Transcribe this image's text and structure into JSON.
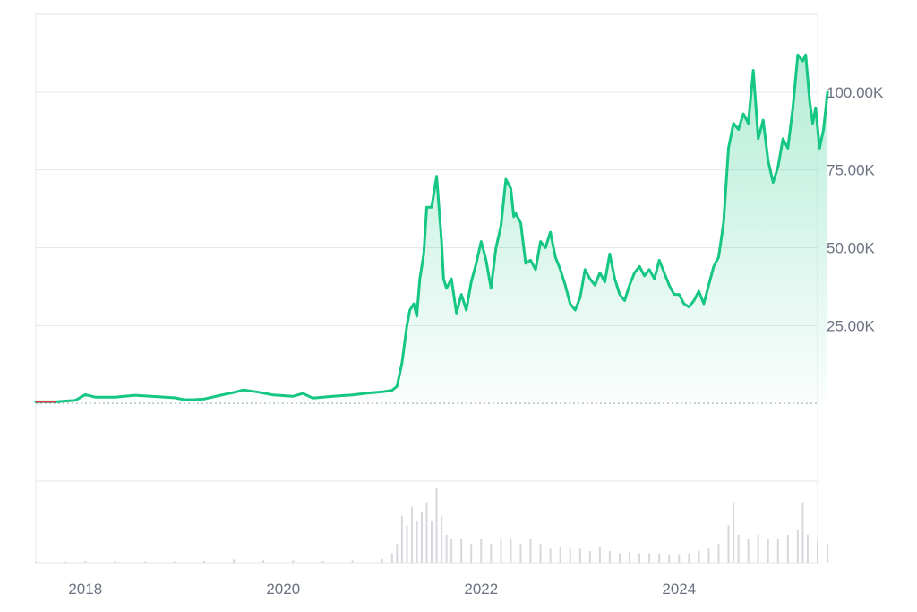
{
  "chart_data": {
    "type": "area",
    "title": "",
    "xlabel": "",
    "ylabel": "",
    "y_ticks": [
      25000,
      50000,
      75000,
      100000
    ],
    "y_tick_labels": [
      "25.00K",
      "50.00K",
      "75.00K",
      "100.00K"
    ],
    "x_ticks": [
      2018,
      2020,
      2022,
      2024
    ],
    "x_tick_labels": [
      "2018",
      "2020",
      "2022",
      "2024"
    ],
    "ylim": [
      -25000,
      125000
    ],
    "xlim": [
      2017.5,
      2025.4
    ],
    "grid": true,
    "colors": {
      "line": "#16c784",
      "fill": "#16c784",
      "start_segment": "#ea3943",
      "grid": "#e5e7eb",
      "volume": "#d5d8dd",
      "zero_line": "#9ca3af"
    },
    "series": [
      {
        "values": [
          [
            2017.5,
            500
          ],
          [
            2017.7,
            500
          ],
          [
            2017.9,
            1000
          ],
          [
            2018.0,
            2800
          ],
          [
            2018.1,
            2000
          ],
          [
            2018.3,
            2000
          ],
          [
            2018.5,
            2600
          ],
          [
            2018.7,
            2200
          ],
          [
            2018.9,
            1800
          ],
          [
            2019.0,
            1200
          ],
          [
            2019.1,
            1200
          ],
          [
            2019.2,
            1400
          ],
          [
            2019.35,
            2500
          ],
          [
            2019.5,
            3500
          ],
          [
            2019.6,
            4300
          ],
          [
            2019.75,
            3600
          ],
          [
            2019.9,
            2700
          ],
          [
            2020.1,
            2300
          ],
          [
            2020.2,
            3200
          ],
          [
            2020.3,
            1700
          ],
          [
            2020.5,
            2300
          ],
          [
            2020.7,
            2700
          ],
          [
            2020.85,
            3300
          ],
          [
            2021.0,
            3700
          ],
          [
            2021.1,
            4200
          ],
          [
            2021.15,
            5500
          ],
          [
            2021.2,
            13000
          ],
          [
            2021.25,
            25000
          ],
          [
            2021.28,
            30000
          ],
          [
            2021.32,
            32000
          ],
          [
            2021.35,
            28000
          ],
          [
            2021.38,
            40000
          ],
          [
            2021.42,
            48000
          ],
          [
            2021.45,
            63000
          ],
          [
            2021.5,
            63000
          ],
          [
            2021.55,
            73000
          ],
          [
            2021.6,
            52000
          ],
          [
            2021.62,
            40000
          ],
          [
            2021.65,
            37000
          ],
          [
            2021.7,
            40000
          ],
          [
            2021.75,
            29000
          ],
          [
            2021.8,
            35000
          ],
          [
            2021.85,
            30000
          ],
          [
            2021.9,
            39000
          ],
          [
            2021.95,
            45000
          ],
          [
            2022.0,
            52000
          ],
          [
            2022.05,
            46000
          ],
          [
            2022.1,
            37000
          ],
          [
            2022.15,
            50000
          ],
          [
            2022.2,
            57000
          ],
          [
            2022.25,
            72000
          ],
          [
            2022.3,
            69000
          ],
          [
            2022.33,
            60000
          ],
          [
            2022.35,
            61000
          ],
          [
            2022.4,
            58000
          ],
          [
            2022.45,
            45000
          ],
          [
            2022.5,
            46000
          ],
          [
            2022.55,
            43000
          ],
          [
            2022.6,
            52000
          ],
          [
            2022.65,
            50000
          ],
          [
            2022.7,
            55000
          ],
          [
            2022.75,
            47000
          ],
          [
            2022.8,
            43000
          ],
          [
            2022.85,
            38000
          ],
          [
            2022.9,
            32000
          ],
          [
            2022.95,
            30000
          ],
          [
            2023.0,
            34000
          ],
          [
            2023.05,
            43000
          ],
          [
            2023.1,
            40000
          ],
          [
            2023.15,
            38000
          ],
          [
            2023.2,
            42000
          ],
          [
            2023.25,
            39000
          ],
          [
            2023.3,
            48000
          ],
          [
            2023.35,
            40000
          ],
          [
            2023.4,
            35000
          ],
          [
            2023.45,
            33000
          ],
          [
            2023.5,
            38000
          ],
          [
            2023.55,
            42000
          ],
          [
            2023.6,
            44000
          ],
          [
            2023.65,
            41000
          ],
          [
            2023.7,
            43000
          ],
          [
            2023.75,
            40000
          ],
          [
            2023.8,
            46000
          ],
          [
            2023.85,
            42000
          ],
          [
            2023.9,
            38000
          ],
          [
            2023.95,
            35000
          ],
          [
            2024.0,
            35000
          ],
          [
            2024.05,
            32000
          ],
          [
            2024.1,
            31000
          ],
          [
            2024.15,
            33000
          ],
          [
            2024.2,
            36000
          ],
          [
            2024.25,
            32000
          ],
          [
            2024.3,
            38000
          ],
          [
            2024.35,
            44000
          ],
          [
            2024.4,
            47000
          ],
          [
            2024.45,
            58000
          ],
          [
            2024.5,
            82000
          ],
          [
            2024.55,
            90000
          ],
          [
            2024.6,
            88000
          ],
          [
            2024.65,
            93000
          ],
          [
            2024.7,
            90000
          ],
          [
            2024.75,
            107000
          ],
          [
            2024.8,
            85000
          ],
          [
            2024.85,
            91000
          ],
          [
            2024.9,
            78000
          ],
          [
            2024.95,
            71000
          ],
          [
            2025.0,
            76000
          ],
          [
            2025.05,
            85000
          ],
          [
            2025.1,
            82000
          ],
          [
            2025.15,
            95000
          ],
          [
            2025.2,
            112000
          ],
          [
            2025.25,
            110000
          ],
          [
            2025.28,
            112000
          ],
          [
            2025.32,
            97000
          ],
          [
            2025.35,
            90000
          ],
          [
            2025.38,
            95000
          ],
          [
            2025.42,
            82000
          ],
          [
            2025.46,
            88000
          ],
          [
            2025.5,
            100000
          ]
        ]
      }
    ],
    "volume": [
      [
        2017.5,
        0.2
      ],
      [
        2017.8,
        0.2
      ],
      [
        2018.0,
        0.4
      ],
      [
        2018.3,
        0.3
      ],
      [
        2018.6,
        0.3
      ],
      [
        2018.9,
        0.3
      ],
      [
        2019.2,
        0.4
      ],
      [
        2019.5,
        0.7
      ],
      [
        2019.8,
        0.5
      ],
      [
        2020.1,
        0.5
      ],
      [
        2020.4,
        0.4
      ],
      [
        2020.7,
        0.5
      ],
      [
        2021.0,
        0.8
      ],
      [
        2021.1,
        2.0
      ],
      [
        2021.15,
        4.0
      ],
      [
        2021.2,
        10
      ],
      [
        2021.25,
        8
      ],
      [
        2021.3,
        12
      ],
      [
        2021.35,
        9
      ],
      [
        2021.4,
        11
      ],
      [
        2021.45,
        13
      ],
      [
        2021.5,
        9
      ],
      [
        2021.55,
        16
      ],
      [
        2021.6,
        10
      ],
      [
        2021.65,
        6
      ],
      [
        2021.7,
        5
      ],
      [
        2021.8,
        5
      ],
      [
        2021.9,
        4
      ],
      [
        2022.0,
        5
      ],
      [
        2022.1,
        4
      ],
      [
        2022.2,
        5
      ],
      [
        2022.3,
        5
      ],
      [
        2022.4,
        4
      ],
      [
        2022.5,
        5
      ],
      [
        2022.6,
        4
      ],
      [
        2022.7,
        3
      ],
      [
        2022.8,
        3.5
      ],
      [
        2022.9,
        3
      ],
      [
        2023.0,
        3
      ],
      [
        2023.1,
        2.5
      ],
      [
        2023.2,
        3.5
      ],
      [
        2023.3,
        2.5
      ],
      [
        2023.4,
        2
      ],
      [
        2023.5,
        2.2
      ],
      [
        2023.6,
        2
      ],
      [
        2023.7,
        2
      ],
      [
        2023.8,
        2
      ],
      [
        2023.9,
        1.8
      ],
      [
        2024.0,
        1.8
      ],
      [
        2024.1,
        2
      ],
      [
        2024.2,
        2.5
      ],
      [
        2024.3,
        3
      ],
      [
        2024.4,
        4
      ],
      [
        2024.5,
        8
      ],
      [
        2024.55,
        13
      ],
      [
        2024.6,
        6
      ],
      [
        2024.7,
        5
      ],
      [
        2024.8,
        6
      ],
      [
        2024.9,
        5
      ],
      [
        2025.0,
        5
      ],
      [
        2025.1,
        6
      ],
      [
        2025.2,
        7
      ],
      [
        2025.25,
        13
      ],
      [
        2025.3,
        6
      ],
      [
        2025.4,
        5
      ],
      [
        2025.5,
        4
      ]
    ]
  }
}
